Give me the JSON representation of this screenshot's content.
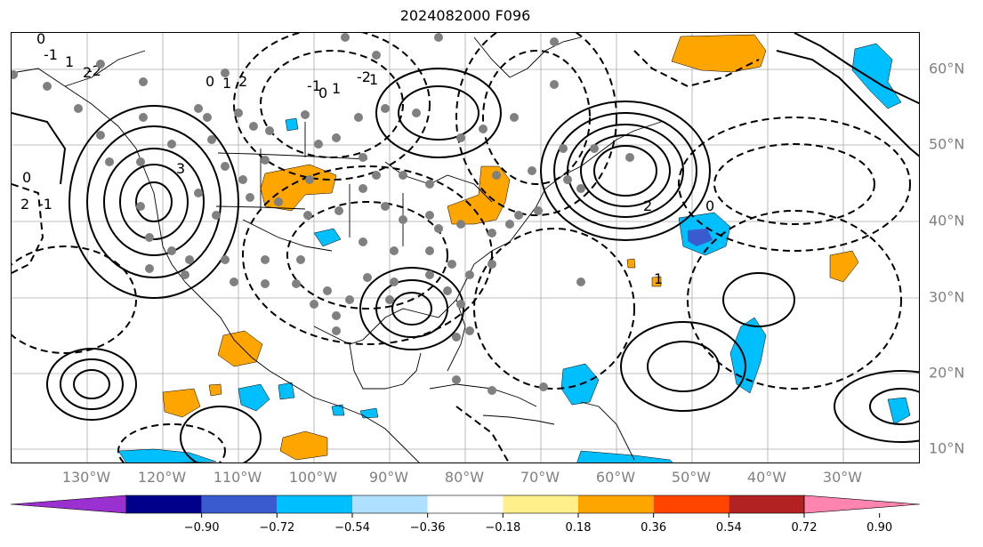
{
  "title": "2024082000 F096",
  "lon_labels": [
    "130°W",
    "120°W",
    "110°W",
    "100°W",
    "90°W",
    "80°W",
    "70°W",
    "60°W",
    "50°W",
    "40°W",
    "30°W"
  ],
  "lat_labels": [
    "60°N",
    "50°N",
    "40°N",
    "30°N",
    "20°N",
    "10°N"
  ],
  "colorbar": {
    "ticks": [
      "−0.90",
      "−0.72",
      "−0.54",
      "−0.36",
      "−0.18",
      "0.18",
      "0.36",
      "0.54",
      "0.72",
      "0.90"
    ],
    "colors": [
      "#9b30d0",
      "#00008b",
      "#3a5bd0",
      "#00bfff",
      "#b0e0ff",
      "#ffffff",
      "#fff08c",
      "#ffa500",
      "#ff4500",
      "#b22222",
      "#ff85b0"
    ]
  },
  "contour_labels": [
    {
      "text": "0"
    },
    {
      "text": "1"
    },
    {
      "text": "2"
    },
    {
      "text": "3"
    },
    {
      "text": "-2"
    },
    {
      "text": "-1"
    },
    {
      "text": "0"
    },
    {
      "text": "1"
    },
    {
      "text": "2"
    },
    {
      "text": "-1"
    },
    {
      "text": "0"
    },
    {
      "text": "1"
    },
    {
      "text": "1"
    },
    {
      "text": "-2"
    },
    {
      "text": "0"
    },
    {
      "text": "2"
    },
    {
      "text": "-1"
    },
    {
      "text": "2"
    },
    {
      "text": "0"
    },
    {
      "text": "1"
    }
  ]
}
